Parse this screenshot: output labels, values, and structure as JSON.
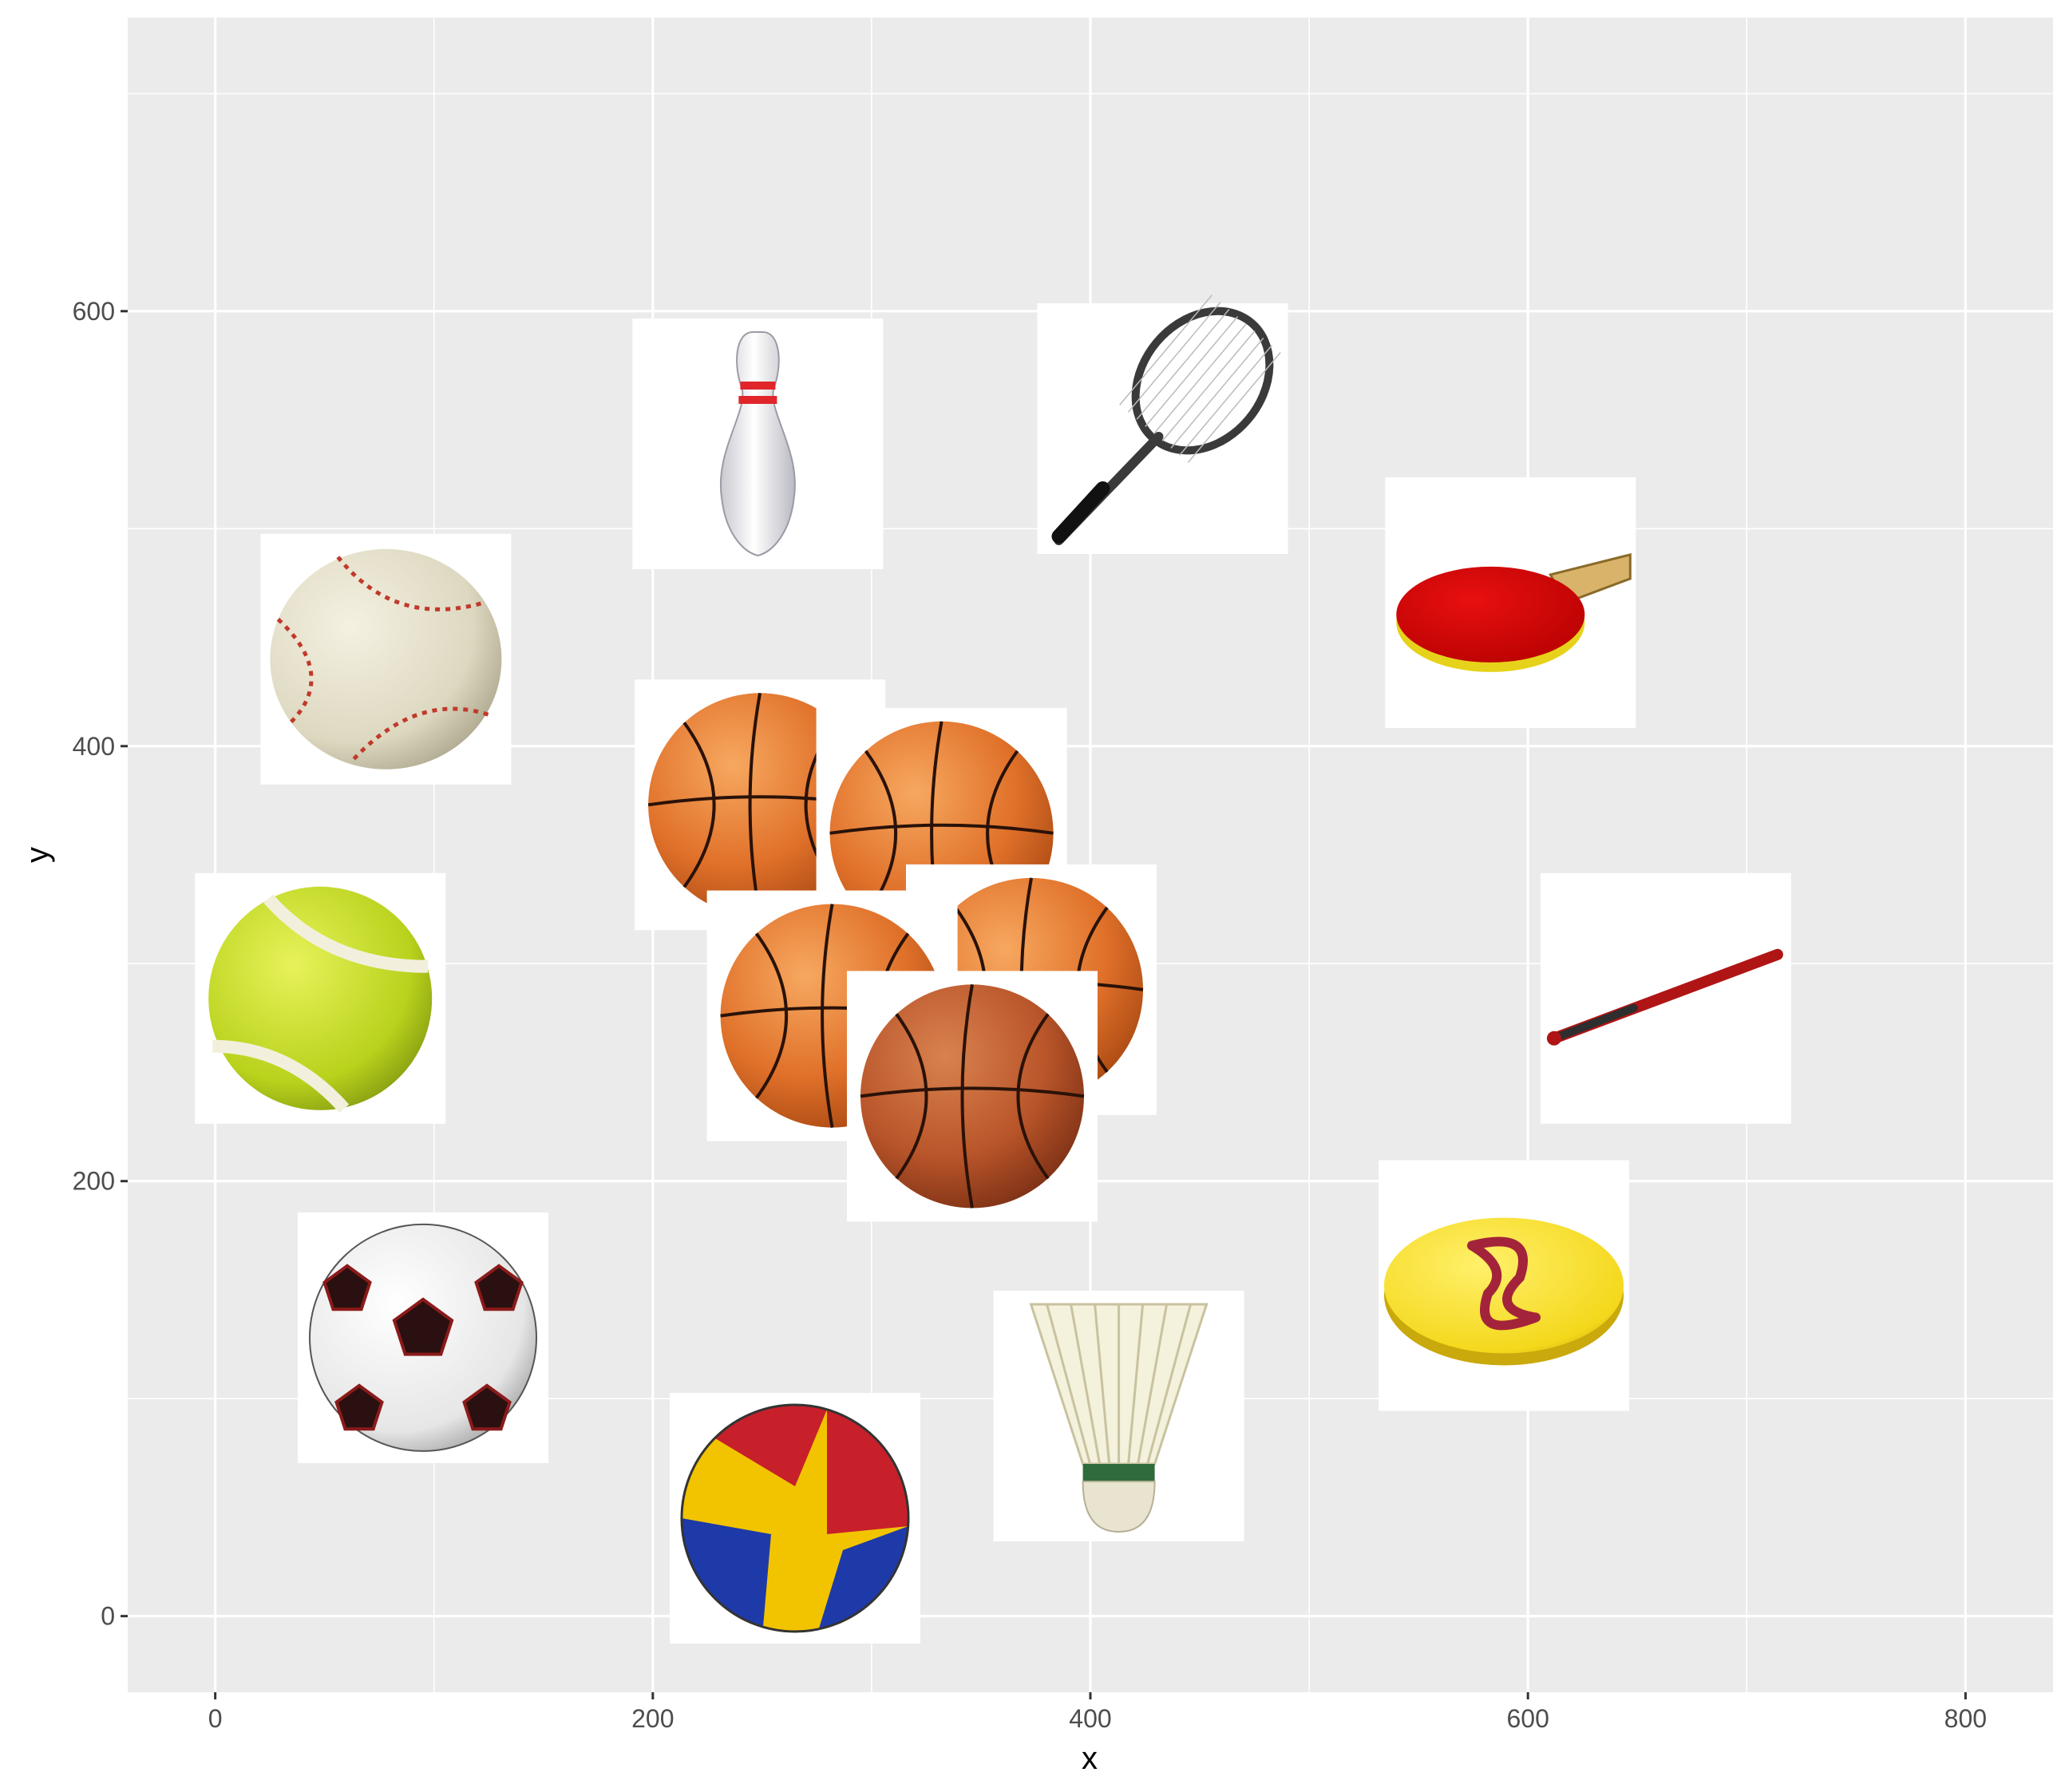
{
  "chart_data": {
    "type": "scatter",
    "xlabel": "x",
    "ylabel": "y",
    "xlim": [
      -40,
      840
    ],
    "ylim": [
      -35,
      735
    ],
    "x_ticks": [
      0,
      200,
      400,
      600,
      800
    ],
    "y_ticks": [
      0,
      200,
      400,
      600
    ],
    "x_minor": [
      100,
      300,
      500,
      700
    ],
    "y_minor": [
      100,
      300,
      500,
      700
    ],
    "grid": true,
    "panel_color": "#ebebeb",
    "grid_color": "#ffffff",
    "points": [
      {
        "label": "baseball",
        "x": 78,
        "y": 440,
        "icon": "baseball-icon"
      },
      {
        "label": "bowling pin",
        "x": 248,
        "y": 539,
        "icon": "bowling-pin-icon"
      },
      {
        "label": "tennis racket",
        "x": 433,
        "y": 546,
        "icon": "tennis-racket-icon"
      },
      {
        "label": "ping pong paddle",
        "x": 592,
        "y": 466,
        "icon": "ping-pong-paddle-icon"
      },
      {
        "label": "basketball",
        "x": 249,
        "y": 373,
        "icon": "basketball-icon"
      },
      {
        "label": "basketball",
        "x": 332,
        "y": 360,
        "icon": "basketball-icon"
      },
      {
        "label": "basketball",
        "x": 373,
        "y": 288,
        "icon": "basketball-icon"
      },
      {
        "label": "basketball",
        "x": 282,
        "y": 276,
        "icon": "basketball-icon"
      },
      {
        "label": "basketball",
        "x": 346,
        "y": 239,
        "icon": "basketball-icon"
      },
      {
        "label": "tennis ball",
        "x": 48,
        "y": 284,
        "icon": "tennis-ball-icon"
      },
      {
        "label": "baseball bat",
        "x": 663,
        "y": 284,
        "icon": "baseball-bat-icon"
      },
      {
        "label": "soccer ball",
        "x": 95,
        "y": 128,
        "icon": "soccer-ball-icon"
      },
      {
        "label": "frisbee",
        "x": 589,
        "y": 152,
        "icon": "frisbee-icon"
      },
      {
        "label": "shuttlecock",
        "x": 413,
        "y": 92,
        "icon": "shuttlecock-icon"
      },
      {
        "label": "volleyball",
        "x": 265,
        "y": 45,
        "icon": "volleyball-icon"
      }
    ]
  }
}
